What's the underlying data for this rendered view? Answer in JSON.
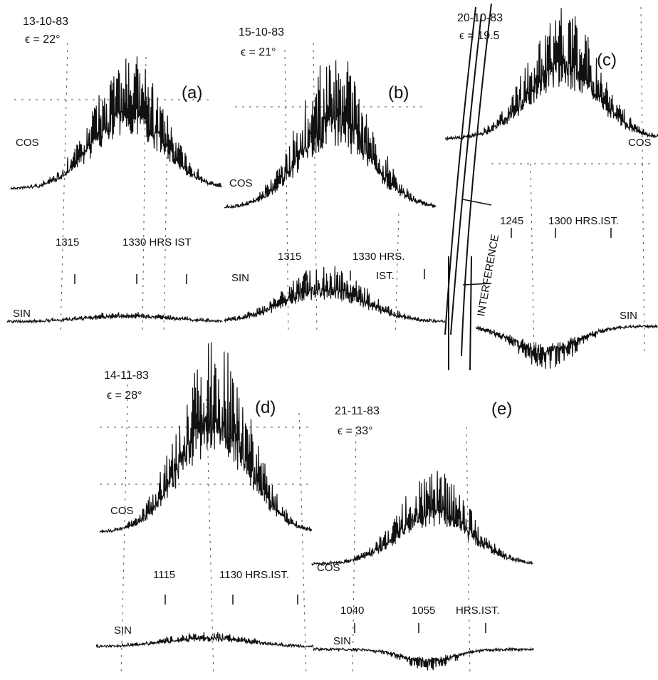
{
  "panels": [
    {
      "label": "(a)",
      "date": "13-10-83",
      "elevation": "ϵ = 22°",
      "cos": "COS",
      "sin": "SIN",
      "times": [
        "1315",
        "1330 HRS IST"
      ]
    },
    {
      "label": "(b)",
      "date": "15-10-83",
      "elevation": "ϵ = 21°",
      "cos": "COS",
      "sin": "SIN",
      "times": [
        "1315",
        "1330 HRS.",
        "IST."
      ]
    },
    {
      "label": "(c)",
      "date": "20-10-83",
      "elevation": "ϵ = 19.5",
      "cos": "COS",
      "sin": "SIN",
      "times": [
        "1245",
        "1300 HRS.IST."
      ]
    },
    {
      "label": "(d)",
      "date": "14-11-83",
      "elevation": "ϵ = 28°",
      "cos": "COS",
      "sin": "SIN",
      "times": [
        "1115",
        "1130 HRS.IST."
      ]
    },
    {
      "label": "(e)",
      "date": "21-11-83",
      "elevation": "ϵ = 33°",
      "cos": "COS",
      "sin": "SIN",
      "times": [
        "1040",
        "1055",
        "HRS.IST."
      ]
    }
  ],
  "annotation": "INTERFERENCE"
}
